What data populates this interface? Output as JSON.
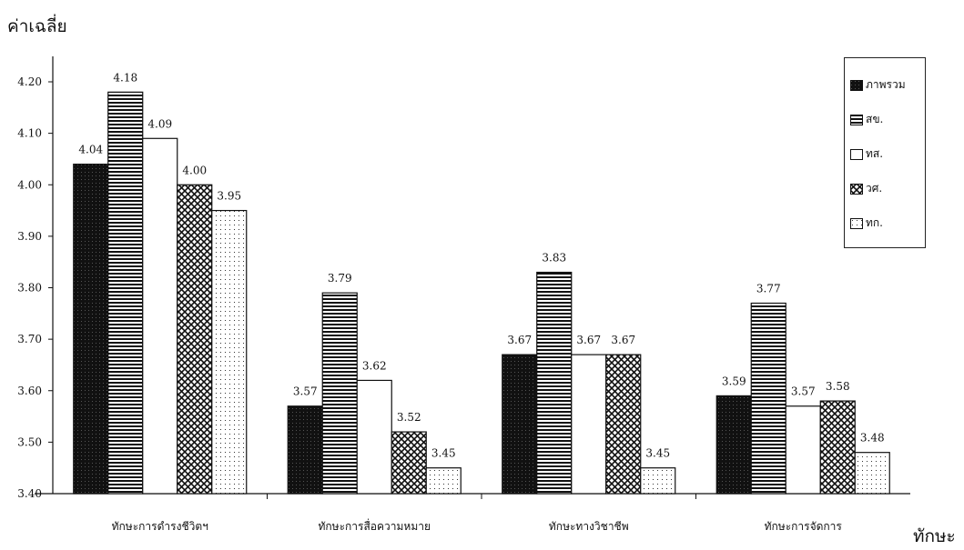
{
  "chart_data": {
    "type": "bar",
    "ylabel": "ค่าเฉลี่ย",
    "xlabel": "ทักษะ",
    "ylim": [
      3.4,
      4.2
    ],
    "y_ticks": [
      "3.40",
      "3.50",
      "3.60",
      "3.70",
      "3.80",
      "3.90",
      "4.00",
      "4.10",
      "4.20"
    ],
    "categories": [
      "ทักษะการดำรงชีวิตฯ",
      "ทักษะการสื่อความหมาย",
      "ทักษะทางวิชาชีพ",
      "ทักษะการจัดการ"
    ],
    "legend_position": "top-right",
    "series": [
      {
        "name": "ภาพรวม",
        "pattern": "dark-dots",
        "values": [
          4.04,
          3.57,
          3.67,
          3.59
        ],
        "labels": [
          "4.04",
          "3.57",
          "3.67",
          "3.59"
        ]
      },
      {
        "name": "สข.",
        "pattern": "horizontal-lines",
        "values": [
          4.18,
          3.79,
          3.83,
          3.77
        ],
        "labels": [
          "4.18",
          "3.79",
          "3.83",
          "3.77"
        ]
      },
      {
        "name": "ทส.",
        "pattern": "white",
        "values": [
          4.09,
          3.62,
          3.67,
          3.57
        ],
        "labels": [
          "4.09",
          "3.62",
          "3.67",
          "3.57"
        ]
      },
      {
        "name": "วศ.",
        "pattern": "crosshatch",
        "values": [
          4.0,
          3.52,
          3.67,
          3.58
        ],
        "labels": [
          "4.00",
          "3.52",
          "3.67",
          "3.58"
        ]
      },
      {
        "name": "ทก.",
        "pattern": "light-dots",
        "values": [
          3.95,
          3.45,
          3.45,
          3.48
        ],
        "labels": [
          "3.95",
          "3.45",
          "3.45",
          "3.48"
        ]
      }
    ]
  }
}
